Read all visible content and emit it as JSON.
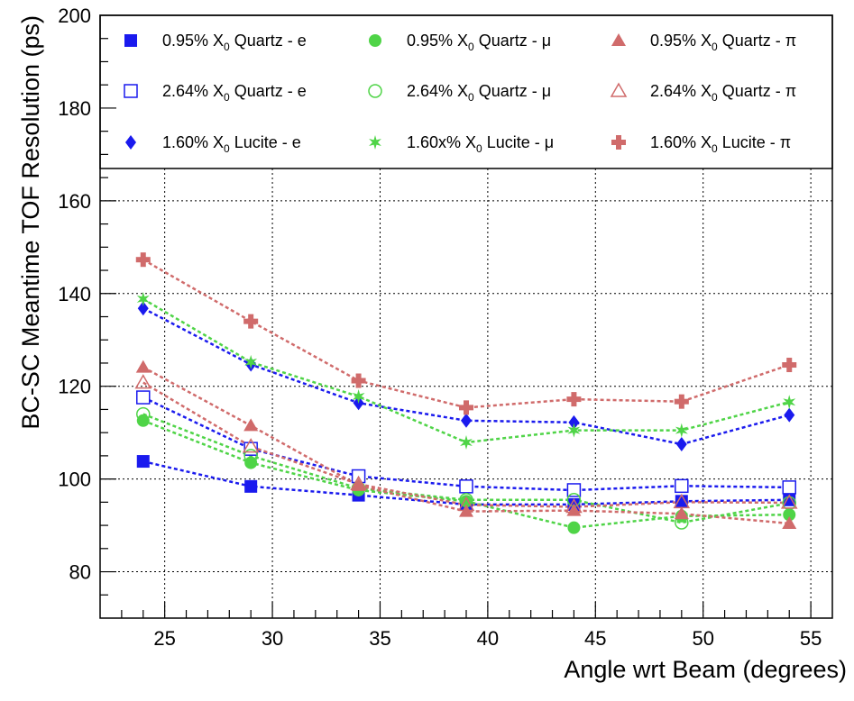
{
  "chart_data": {
    "type": "line",
    "xlabel": "Angle wrt Beam (degrees)",
    "ylabel": "BC-SC Meantime TOF Resolution (ps)",
    "xlim": [
      22,
      56
    ],
    "ylim": [
      70,
      200
    ],
    "grid": true,
    "x_ticks": [
      25,
      30,
      35,
      40,
      45,
      50,
      55
    ],
    "y_ticks": [
      80,
      100,
      120,
      140,
      160,
      180,
      200
    ],
    "x": [
      24,
      29,
      34,
      39,
      44,
      49,
      54
    ],
    "legend_position": "top",
    "series": [
      {
        "name": "0.95% X0 Quartz - e",
        "label_pre": "0.95% X",
        "label_post": " Quartz - e",
        "marker": "square-filled",
        "color": "#1a1aee",
        "values": [
          103.8,
          98.4,
          96.5,
          94.5,
          94.5,
          95.2,
          95.5
        ]
      },
      {
        "name": "2.64% X0 Quartz - e",
        "label_pre": "2.64% X",
        "label_post": " Quartz - e",
        "marker": "square-open",
        "color": "#1a1aee",
        "values": [
          117.6,
          106.5,
          100.6,
          98.4,
          97.6,
          98.5,
          98.2
        ]
      },
      {
        "name": "1.60% X0 Lucite - e",
        "label_pre": "1.60% X",
        "label_post": " Lucite - e",
        "marker": "diamond-filled",
        "color": "#1a1aee",
        "values": [
          136.8,
          124.7,
          116.4,
          112.6,
          112.2,
          107.5,
          113.8
        ]
      },
      {
        "name": "0.95% X0 Quartz - μ",
        "label_pre": "0.95% X",
        "label_post": " Quartz - μ",
        "marker": "circle-filled",
        "color": "#4fd447",
        "values": [
          112.6,
          103.5,
          97.6,
          95.2,
          89.5,
          92.0,
          92.3
        ]
      },
      {
        "name": "2.64% X0 Quartz - μ",
        "label_pre": "2.64% X",
        "label_post": " Quartz - μ",
        "marker": "circle-open",
        "color": "#4fd447",
        "values": [
          114.0,
          105.0,
          98.0,
          95.5,
          95.5,
          90.6,
          94.8
        ]
      },
      {
        "name": "1.60x% X0 Lucite - μ",
        "label_pre": "1.60x% X",
        "label_post": " Lucite - μ",
        "marker": "star",
        "color": "#4fd447",
        "values": [
          138.8,
          125.2,
          117.8,
          107.9,
          110.5,
          110.5,
          116.6
        ]
      },
      {
        "name": "0.95% X0 Quartz - π",
        "label_pre": "0.95% X",
        "label_post": " Quartz - π",
        "marker": "triangle-filled",
        "color": "#d06b6b",
        "values": [
          124.1,
          111.5,
          98.6,
          93.0,
          93.2,
          92.5,
          90.4
        ]
      },
      {
        "name": "2.64% X0 Quartz - π",
        "label_pre": "2.64% X",
        "label_post": " Quartz - π",
        "marker": "triangle-open",
        "color": "#d06b6b",
        "values": [
          120.8,
          107.0,
          98.9,
          94.4,
          94.0,
          95.0,
          94.9
        ]
      },
      {
        "name": "1.60% X0 Lucite - π",
        "label_pre": "1.60% X",
        "label_post": " Lucite - π",
        "marker": "cross",
        "color": "#d06b6b",
        "values": [
          147.3,
          134.0,
          121.2,
          115.4,
          117.2,
          116.7,
          124.6
        ]
      }
    ],
    "subscript": "0"
  }
}
